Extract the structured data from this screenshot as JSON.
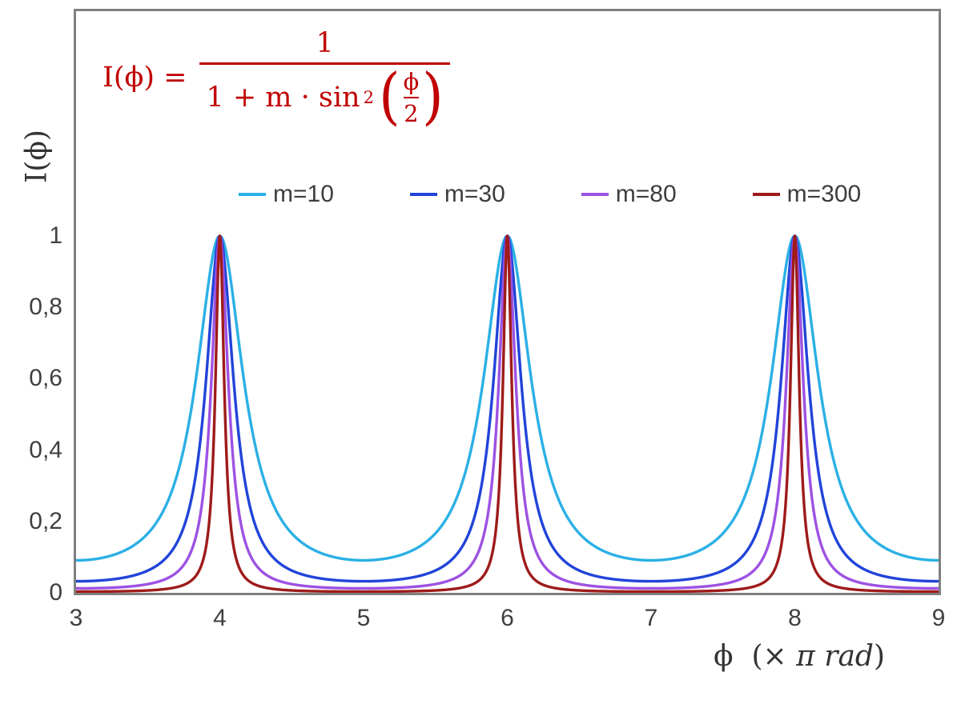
{
  "chart": {
    "y_axis_title": "I(ϕ)",
    "x_axis_title_phi": "ϕ",
    "x_axis_title_open": "(×",
    "x_axis_title_pi": "π rad",
    "x_axis_title_close": ")"
  },
  "formula": {
    "lhs": "I(ϕ) =",
    "numerator": "1",
    "den_prefix": "1 + m · sin",
    "den_sup": "2",
    "inner_numerator": "ϕ",
    "inner_denominator": "2",
    "color": "#C00000"
  },
  "colors": {
    "axis": "#808080",
    "text": "#404040",
    "background": "#FFFFFF",
    "formula": "#C00000"
  },
  "chart_data": {
    "type": "line",
    "title": "",
    "formula": "I(phi) = 1 / (1 + m * sin^2(phi/2))",
    "xlabel": "ϕ (× π rad)",
    "ylabel": "I(ϕ)",
    "x_units": "multiples of pi radians",
    "x_range": [
      3,
      9
    ],
    "ylim": [
      0,
      1
    ],
    "grid": false,
    "legend_position": "top-center",
    "x_ticks": [
      3,
      4,
      5,
      6,
      7,
      8,
      9
    ],
    "x_tick_labels": [
      "3",
      "4",
      "5",
      "6",
      "7",
      "8",
      "9"
    ],
    "y_ticks": [
      0,
      0.2,
      0.4,
      0.6,
      0.8,
      1
    ],
    "y_tick_labels": [
      "0",
      "0,2",
      "0,4",
      "0,6",
      "0,8",
      "1"
    ],
    "peaks_at_x": [
      4,
      6,
      8
    ],
    "peak_value": 1,
    "series": [
      {
        "name": "m=10",
        "m": 10,
        "color": "#2BB0E5",
        "min_value": 0.0909
      },
      {
        "name": "m=30",
        "m": 30,
        "color": "#2144D9",
        "min_value": 0.0323
      },
      {
        "name": "m=80",
        "m": 80,
        "color": "#9D52E3",
        "min_value": 0.0123
      },
      {
        "name": "m=300",
        "m": 300,
        "color": "#9E1B1A",
        "min_value": 0.0033
      }
    ]
  }
}
